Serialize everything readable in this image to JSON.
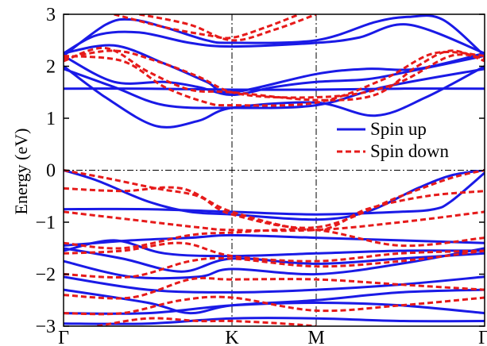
{
  "chart_data": {
    "type": "line",
    "ylabel": "Energy (eV)",
    "ylim": [
      -3,
      3
    ],
    "yticks": [
      -3,
      -2,
      -1,
      0,
      1,
      2,
      3
    ],
    "x_ticks": [
      {
        "label": "Γ",
        "x": 0
      },
      {
        "label": "K",
        "x": 1
      },
      {
        "label": "M",
        "x": 1.5
      },
      {
        "label": "Γ",
        "x": 2.5
      }
    ],
    "xlim": [
      0,
      2.5
    ],
    "fermi_level": 0,
    "grid": "high-symmetry dash-dot lines at K, M and E=0",
    "legend_position": "right, middle",
    "colors": {
      "spin_up": "#1a1ae6",
      "spin_down": "#e61a1a"
    },
    "series": [
      {
        "name": "Spin up",
        "style": "solid",
        "bands": [
          [
            [
              0,
              1.57
            ],
            [
              0.5,
              1.57
            ],
            [
              1,
              1.55
            ],
            [
              1.5,
              1.55
            ],
            [
              2,
              1.57
            ],
            [
              2.5,
              1.57
            ]
          ],
          [
            [
              0,
              1.95
            ],
            [
              0.3,
              1.6
            ],
            [
              0.6,
              1.25
            ],
            [
              1,
              1.2
            ],
            [
              1.5,
              1.25
            ],
            [
              1.9,
              1.6
            ],
            [
              2.5,
              1.95
            ]
          ],
          [
            [
              0,
              2.0
            ],
            [
              0.25,
              1.4
            ],
            [
              0.55,
              0.85
            ],
            [
              0.8,
              0.95
            ],
            [
              1,
              1.2
            ],
            [
              1.5,
              1.3
            ],
            [
              1.85,
              1.05
            ],
            [
              2.15,
              1.4
            ],
            [
              2.5,
              2.0
            ]
          ],
          [
            [
              0,
              2.2
            ],
            [
              0.3,
              1.7
            ],
            [
              0.6,
              1.7
            ],
            [
              0.8,
              1.6
            ],
            [
              1,
              1.45
            ],
            [
              1.25,
              1.6
            ],
            [
              1.5,
              1.7
            ],
            [
              1.8,
              1.75
            ],
            [
              2.05,
              1.9
            ],
            [
              2.5,
              2.2
            ]
          ],
          [
            [
              0,
              2.25
            ],
            [
              0.3,
              2.4
            ],
            [
              0.6,
              2.05
            ],
            [
              0.85,
              1.7
            ],
            [
              1,
              1.5
            ],
            [
              1.5,
              1.85
            ],
            [
              1.8,
              1.95
            ],
            [
              2.1,
              1.95
            ],
            [
              2.5,
              2.25
            ]
          ],
          [
            [
              0,
              2.25
            ],
            [
              0.2,
              2.6
            ],
            [
              0.45,
              2.65
            ],
            [
              0.75,
              2.45
            ],
            [
              1,
              2.38
            ],
            [
              1.5,
              2.45
            ],
            [
              1.75,
              2.55
            ],
            [
              2.05,
              2.8
            ],
            [
              2.5,
              2.25
            ]
          ],
          [
            [
              0,
              2.2
            ],
            [
              0.25,
              2.8
            ],
            [
              0.4,
              2.9
            ],
            [
              0.6,
              2.75
            ],
            [
              0.85,
              2.5
            ],
            [
              1,
              2.45
            ],
            [
              1.5,
              2.5
            ],
            [
              1.85,
              2.85
            ],
            [
              2.05,
              2.95
            ],
            [
              2.25,
              2.9
            ],
            [
              2.5,
              2.2
            ]
          ],
          [
            [
              0,
              0
            ],
            [
              0.2,
              -0.2
            ],
            [
              0.5,
              -0.6
            ],
            [
              0.75,
              -0.8
            ],
            [
              1,
              -0.85
            ],
            [
              1.5,
              -0.95
            ],
            [
              1.8,
              -0.8
            ],
            [
              2.1,
              -0.35
            ],
            [
              2.3,
              -0.1
            ],
            [
              2.5,
              0
            ]
          ],
          [
            [
              0,
              -0.75
            ],
            [
              0.5,
              -0.75
            ],
            [
              1,
              -0.8
            ],
            [
              1.5,
              -0.85
            ],
            [
              2,
              -0.8
            ],
            [
              2.2,
              -0.75
            ],
            [
              2.3,
              -0.6
            ],
            [
              2.5,
              -0.05
            ]
          ],
          [
            [
              0,
              -1.45
            ],
            [
              0.4,
              -1.35
            ],
            [
              0.75,
              -1.3
            ],
            [
              1,
              -1.25
            ],
            [
              1.5,
              -1.3
            ],
            [
              2,
              -1.35
            ],
            [
              2.5,
              -1.4
            ]
          ],
          [
            [
              0,
              -1.55
            ],
            [
              0.3,
              -1.35
            ],
            [
              0.6,
              -1.6
            ],
            [
              1,
              -1.65
            ],
            [
              1.5,
              -1.6
            ],
            [
              2,
              -1.55
            ],
            [
              2.5,
              -1.55
            ]
          ],
          [
            [
              0,
              -1.5
            ],
            [
              0.35,
              -1.7
            ],
            [
              0.7,
              -1.95
            ],
            [
              1,
              -1.7
            ],
            [
              1.5,
              -1.8
            ],
            [
              2,
              -1.7
            ],
            [
              2.5,
              -1.6
            ]
          ],
          [
            [
              0,
              -1.75
            ],
            [
              0.4,
              -2.05
            ],
            [
              0.8,
              -2.05
            ],
            [
              1,
              -1.9
            ],
            [
              1.5,
              -2.0
            ],
            [
              2,
              -1.8
            ],
            [
              2.5,
              -1.5
            ]
          ],
          [
            [
              0,
              -2.05
            ],
            [
              0.5,
              -2.3
            ],
            [
              1,
              -2.35
            ],
            [
              1.5,
              -2.3
            ],
            [
              2,
              -2.2
            ],
            [
              2.5,
              -2.05
            ]
          ],
          [
            [
              0,
              -2.3
            ],
            [
              0.5,
              -2.55
            ],
            [
              0.75,
              -2.75
            ],
            [
              1,
              -2.6
            ],
            [
              1.5,
              -2.5
            ],
            [
              2,
              -2.35
            ],
            [
              2.5,
              -2.3
            ]
          ],
          [
            [
              0,
              -2.75
            ],
            [
              0.5,
              -2.75
            ],
            [
              1,
              -2.6
            ],
            [
              1.5,
              -2.55
            ],
            [
              2,
              -2.6
            ],
            [
              2.5,
              -2.75
            ]
          ],
          [
            [
              0,
              -2.95
            ],
            [
              0.5,
              -2.95
            ],
            [
              1,
              -2.85
            ],
            [
              1.5,
              -2.85
            ],
            [
              2,
              -2.9
            ],
            [
              2.5,
              -2.9
            ]
          ]
        ]
      },
      {
        "name": "Spin down",
        "style": "dashed",
        "bands": [
          [
            [
              0.3,
              3.0
            ],
            [
              0.6,
              2.75
            ],
            [
              0.85,
              2.6
            ],
            [
              1,
              2.55
            ],
            [
              1.2,
              2.75
            ],
            [
              1.4,
              3.0
            ]
          ],
          [
            [
              0.45,
              3.0
            ],
            [
              0.75,
              2.8
            ],
            [
              1,
              2.5
            ],
            [
              1.25,
              2.7
            ],
            [
              1.5,
              3.0
            ]
          ],
          [
            [
              0,
              2.15
            ],
            [
              0.3,
              2.3
            ],
            [
              0.55,
              2.1
            ],
            [
              0.8,
              1.8
            ],
            [
              1,
              1.5
            ],
            [
              1.3,
              1.4
            ],
            [
              1.7,
              1.45
            ],
            [
              2.0,
              1.7
            ],
            [
              2.3,
              2.2
            ],
            [
              2.5,
              2.15
            ]
          ],
          [
            [
              0,
              2.1
            ],
            [
              0.25,
              2.35
            ],
            [
              0.5,
              1.9
            ],
            [
              0.75,
              1.55
            ],
            [
              1,
              1.5
            ],
            [
              1.5,
              1.35
            ],
            [
              1.85,
              1.45
            ],
            [
              2.1,
              2.0
            ],
            [
              2.3,
              2.3
            ],
            [
              2.5,
              2.1
            ]
          ],
          [
            [
              0,
              2.2
            ],
            [
              0.35,
              2.1
            ],
            [
              0.6,
              1.6
            ],
            [
              0.85,
              1.3
            ],
            [
              1,
              1.25
            ],
            [
              1.5,
              1.3
            ],
            [
              1.9,
              1.75
            ],
            [
              2.2,
              2.25
            ],
            [
              2.5,
              2.2
            ]
          ],
          [
            [
              0,
              0
            ],
            [
              0.25,
              -0.15
            ],
            [
              0.55,
              -0.35
            ],
            [
              0.8,
              -0.5
            ],
            [
              1,
              -0.85
            ],
            [
              1.5,
              -1.1
            ],
            [
              2,
              -0.5
            ],
            [
              2.3,
              -0.15
            ],
            [
              2.5,
              0
            ]
          ],
          [
            [
              0,
              -0.35
            ],
            [
              0.35,
              -0.4
            ],
            [
              0.7,
              -0.35
            ],
            [
              1,
              -0.8
            ],
            [
              1.5,
              -1.15
            ],
            [
              1.8,
              -0.75
            ],
            [
              2.15,
              -0.5
            ],
            [
              2.5,
              -0.4
            ]
          ],
          [
            [
              0,
              -0.8
            ],
            [
              0.4,
              -0.95
            ],
            [
              0.8,
              -1.1
            ],
            [
              1,
              -1.15
            ],
            [
              1.5,
              -1.15
            ],
            [
              2.0,
              -1.0
            ],
            [
              2.5,
              -0.8
            ]
          ],
          [
            [
              0,
              -1.4
            ],
            [
              0.35,
              -1.5
            ],
            [
              0.75,
              -1.25
            ],
            [
              1,
              -1.2
            ],
            [
              1.5,
              -1.15
            ],
            [
              2.0,
              -1.45
            ],
            [
              2.5,
              -1.3
            ]
          ],
          [
            [
              0,
              -1.6
            ],
            [
              0.35,
              -1.55
            ],
            [
              0.7,
              -1.4
            ],
            [
              1,
              -1.65
            ],
            [
              1.5,
              -1.75
            ],
            [
              2.0,
              -1.6
            ],
            [
              2.5,
              -1.55
            ]
          ],
          [
            [
              0,
              -2.0
            ],
            [
              0.4,
              -2.05
            ],
            [
              0.75,
              -1.75
            ],
            [
              1,
              -1.7
            ],
            [
              1.5,
              -1.85
            ],
            [
              2.0,
              -1.75
            ],
            [
              2.5,
              -1.55
            ]
          ],
          [
            [
              0,
              -2.4
            ],
            [
              0.4,
              -2.45
            ],
            [
              0.75,
              -2.1
            ],
            [
              1,
              -2.1
            ],
            [
              1.5,
              -2.1
            ],
            [
              2.0,
              -2.2
            ],
            [
              2.5,
              -2.3
            ]
          ],
          [
            [
              0,
              -2.75
            ],
            [
              0.35,
              -2.75
            ],
            [
              0.7,
              -2.5
            ],
            [
              1,
              -2.45
            ],
            [
              1.5,
              -2.7
            ],
            [
              2.0,
              -2.6
            ],
            [
              2.5,
              -2.45
            ]
          ],
          [
            [
              0.2,
              -3.0
            ],
            [
              0.5,
              -2.85
            ],
            [
              0.8,
              -2.9
            ],
            [
              1,
              -2.9
            ],
            [
              1.3,
              -2.95
            ],
            [
              1.5,
              -3.0
            ]
          ]
        ]
      }
    ]
  }
}
